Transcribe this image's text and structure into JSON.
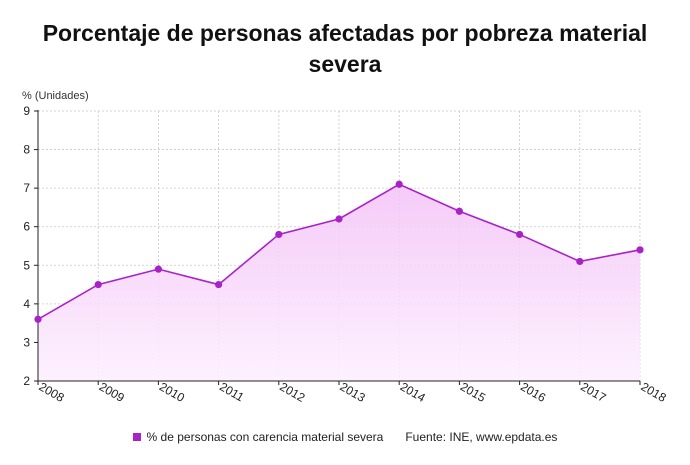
{
  "chart_data": {
    "type": "area",
    "title": "Porcentaje de personas afectadas por pobreza material severa",
    "unit_label": "% (Unidades)",
    "x": [
      "2008",
      "2009",
      "2010",
      "2011",
      "2012",
      "2013",
      "2014",
      "2015",
      "2016",
      "2017",
      "2018"
    ],
    "series": [
      {
        "name": "% de personas con carencia material severa",
        "values": [
          3.6,
          4.5,
          4.9,
          4.5,
          5.8,
          6.2,
          7.1,
          6.4,
          5.8,
          5.1,
          5.4
        ]
      }
    ],
    "ylim": [
      2,
      9
    ],
    "yticks": [
      2,
      3,
      4,
      5,
      6,
      7,
      8,
      9
    ],
    "grid": true,
    "legend_position": "bottom",
    "source": "Fuente: INE, www.epdata.es",
    "colors": {
      "line": "#a922c8",
      "marker": "#a922c8",
      "fill_top": "#f3c2f7",
      "fill_bottom": "#fdf0fe",
      "grid": "#c8c8c8"
    }
  }
}
